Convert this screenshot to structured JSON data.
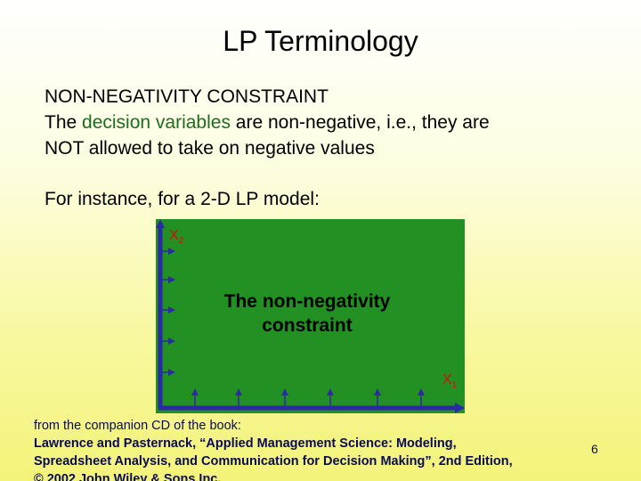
{
  "slide": {
    "title": "LP Terminology",
    "heading": "NON-NEGATIVITY CONSTRAINT",
    "line1_pre": "The ",
    "line1_highlight": "decision variables",
    "line1_post": " are non-negative, i.e., they are",
    "line2": "NOT allowed to take on negative values",
    "example": "For instance, for a 2-D LP model:",
    "diagram": {
      "center_label_line1": "The non-negativity",
      "center_label_line2": "constraint",
      "y_axis_var": "X",
      "y_axis_sub": "2",
      "x_axis_var": "X",
      "x_axis_sub": "1",
      "fill_color": "#229022",
      "axis_color": "#2a2aa8",
      "label_color": "#cc1111"
    },
    "source": {
      "line1": "from the companion CD of the book:",
      "line2": "Lawrence and Pasternack, “Applied Management Science: Modeling,",
      "line3": "Spreadsheet Analysis, and Communication for Decision Making”, 2nd Edition,",
      "line4": "© 2002 John Wiley & Sons Inc."
    },
    "page_number": "6"
  }
}
